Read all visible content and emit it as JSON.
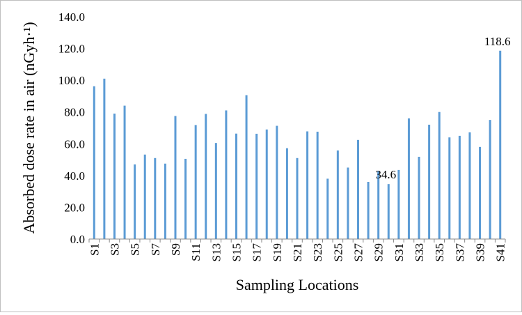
{
  "chart_data": {
    "type": "bar",
    "title": "",
    "xlabel": "Sampling Locations",
    "ylabel": "Absorbed dose rate in air (nGyh·¹)",
    "ylim": [
      0,
      140
    ],
    "yticks": [
      0,
      20,
      40,
      60,
      80,
      100,
      120,
      140
    ],
    "ytick_labels": [
      "0.0",
      "20.0",
      "40.0",
      "60.0",
      "80.0",
      "100.0",
      "120.0",
      "140.0"
    ],
    "grid": false,
    "legend": "none",
    "bar_color": "#5b9bd5",
    "categories": [
      "S1",
      "S2",
      "S3",
      "S4",
      "S5",
      "S6",
      "S7",
      "S8",
      "S9",
      "S10",
      "S11",
      "S12",
      "S13",
      "S14",
      "S15",
      "S16",
      "S17",
      "S18",
      "S19",
      "S20",
      "S21",
      "S22",
      "S23",
      "S24",
      "S25",
      "S26",
      "S27",
      "S28",
      "S29",
      "S30",
      "S31",
      "S32",
      "S33",
      "S34",
      "S35",
      "S36",
      "S37",
      "S38",
      "S39",
      "S40",
      "S41"
    ],
    "tick_labels": [
      "S1",
      "",
      "S3",
      "",
      "S5",
      "",
      "S7",
      "",
      "S9",
      "",
      "S11",
      "",
      "S13",
      "",
      "S15",
      "",
      "S17",
      "",
      "S19",
      "",
      "S21",
      "",
      "S23",
      "",
      "S25",
      "",
      "S27",
      "",
      "S29",
      "",
      "S31",
      "",
      "S33",
      "",
      "S35",
      "",
      "S37",
      "",
      "S39",
      "",
      "S41"
    ],
    "values": [
      96.2,
      101.0,
      79.0,
      84.0,
      47.0,
      53.2,
      51.0,
      47.5,
      77.5,
      50.5,
      71.8,
      78.8,
      60.5,
      81.0,
      66.4,
      90.6,
      66.3,
      69.0,
      71.3,
      57.2,
      51.0,
      67.8,
      67.6,
      38.0,
      55.8,
      45.0,
      62.4,
      36.0,
      42.6,
      34.6,
      43.5,
      76.0,
      51.8,
      72.0,
      80.0,
      64.0,
      65.0,
      67.2,
      58.0,
      75.0,
      118.6
    ],
    "annotations": [
      {
        "category": "S30",
        "text": "34.6"
      },
      {
        "category": "S41",
        "text": "118.6"
      }
    ]
  }
}
